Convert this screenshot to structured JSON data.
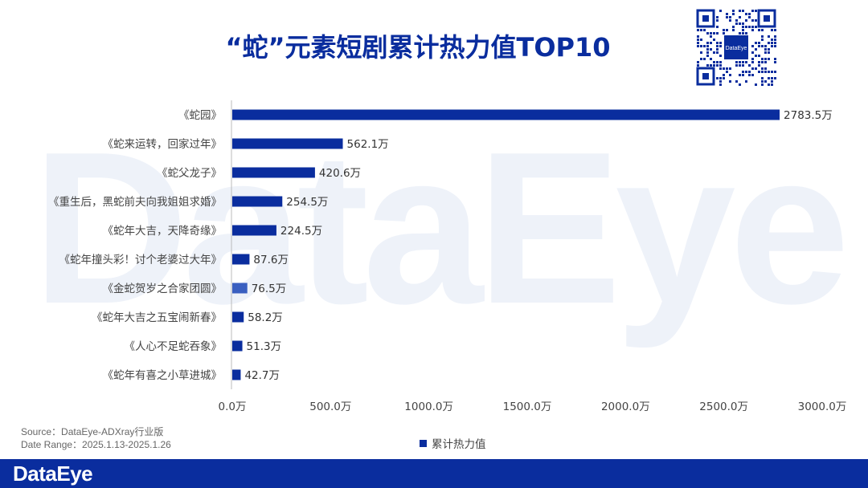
{
  "title": "“蛇”元素短剧累计热力值TOP10",
  "watermark": "DataEye",
  "qr_badge": "DataEye",
  "source_line": "Source：DataEye-ADXray行业版",
  "date_line": "Date Range：2025.1.13-2025.1.26",
  "footer_logo": "DataEye",
  "colors": {
    "bar": "#0a2d9e",
    "bar_highlight": "#3a5fc0",
    "footer": "#0a2d9e"
  },
  "chart_data": {
    "type": "bar",
    "orientation": "horizontal",
    "categories": [
      "《蛇园》",
      "《蛇来运转，回家过年》",
      "《蛇父龙子》",
      "《重生后，黑蛇前夫向我姐姐求婚》",
      "《蛇年大吉，天降奇缘》",
      "《蛇年撞头彩！讨个老婆过大年》",
      "《金蛇贺岁之合家团圆》",
      "《蛇年大吉之五宝闹新春》",
      "《人心不足蛇吞象》",
      "《蛇年有喜之小草进城》"
    ],
    "series": [
      {
        "name": "累计热力值",
        "values": [
          2783.5,
          562.1,
          420.6,
          254.5,
          224.5,
          87.6,
          76.5,
          58.2,
          51.3,
          42.7
        ]
      }
    ],
    "value_labels": [
      "2783.5万",
      "562.1万",
      "420.6万",
      "254.5万",
      "224.5万",
      "87.6万",
      "76.5万",
      "58.2万",
      "51.3万",
      "42.7万"
    ],
    "xlim": [
      0,
      3000
    ],
    "xticks": [
      "0.0万",
      "500.0万",
      "1000.0万",
      "1500.0万",
      "2000.0万",
      "2500.0万",
      "3000.0万"
    ],
    "highlight_index": 6,
    "legend": "bottom"
  }
}
